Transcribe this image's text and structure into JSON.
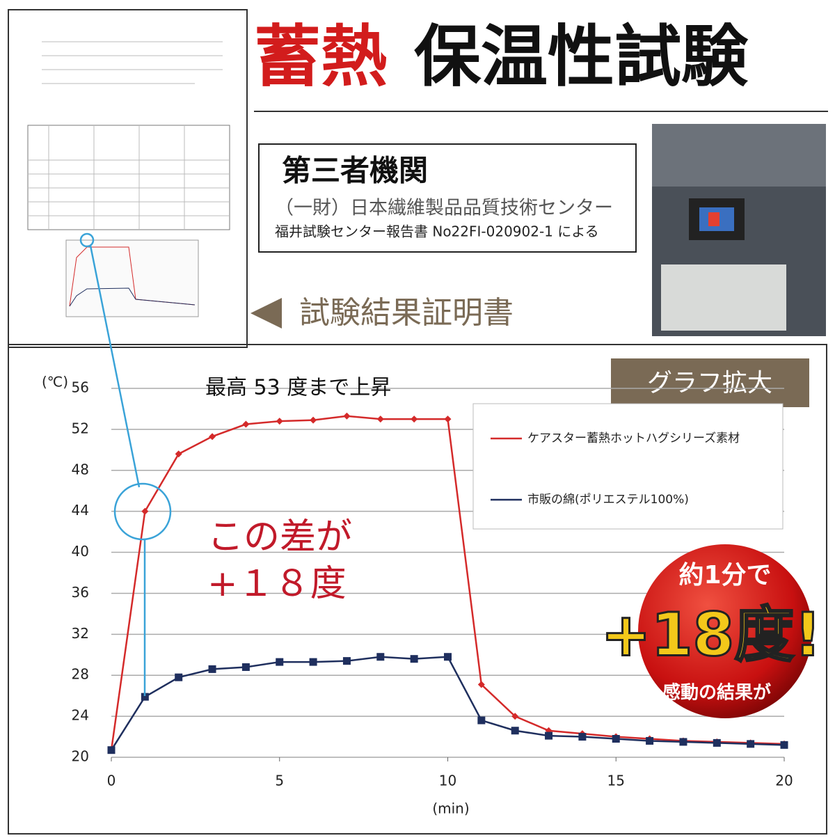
{
  "header": {
    "title_red": "蓄熱",
    "title_black": "保温性試験"
  },
  "agency": {
    "heading": "第三者機関",
    "name": "（一財）日本繊維製品品質技術センター",
    "report": "福井試験センター報告書 No22FI-020902-1 による"
  },
  "certificate_label": "試験結果証明書",
  "zoom_label": "グラフ拡大",
  "badge": {
    "top": "約1分で",
    "main": "+18度!",
    "bottom": "感動の結果が"
  },
  "chart_data": {
    "type": "line",
    "y_label": "(℃)",
    "x_label": "(min)",
    "annotations": [
      "最高 53 度まで上昇",
      "この差が",
      "+１８度"
    ],
    "x": [
      0,
      1,
      2,
      3,
      4,
      5,
      6,
      7,
      8,
      9,
      10,
      11,
      12,
      13,
      14,
      15,
      16,
      17,
      18,
      19,
      20
    ],
    "series": [
      {
        "name": "ケアスター蓄熱ホットハグシリーズ素材",
        "color": "#d42a2a",
        "marker": "diamond",
        "values": [
          20.7,
          44,
          49.6,
          51.3,
          52.5,
          52.8,
          52.9,
          53.3,
          53.0,
          53.0,
          53.0,
          27.1,
          24.0,
          22.6,
          22.3,
          22.0,
          21.8,
          21.6,
          21.5,
          21.4,
          21.3
        ]
      },
      {
        "name": "市販の綿(ポリエステル100%)",
        "color": "#1f2f5e",
        "marker": "square",
        "values": [
          20.7,
          25.9,
          27.8,
          28.6,
          28.8,
          29.3,
          29.3,
          29.4,
          29.8,
          29.6,
          29.8,
          23.6,
          22.6,
          22.1,
          22.0,
          21.8,
          21.6,
          21.5,
          21.4,
          21.3,
          21.2
        ]
      }
    ],
    "xlim": [
      0,
      20
    ],
    "xticks": [
      0,
      5,
      10,
      15,
      20
    ],
    "ylim": [
      20,
      56
    ],
    "yticks": [
      20,
      24,
      28,
      32,
      36,
      40,
      44,
      48,
      52,
      56
    ],
    "grid": true
  }
}
